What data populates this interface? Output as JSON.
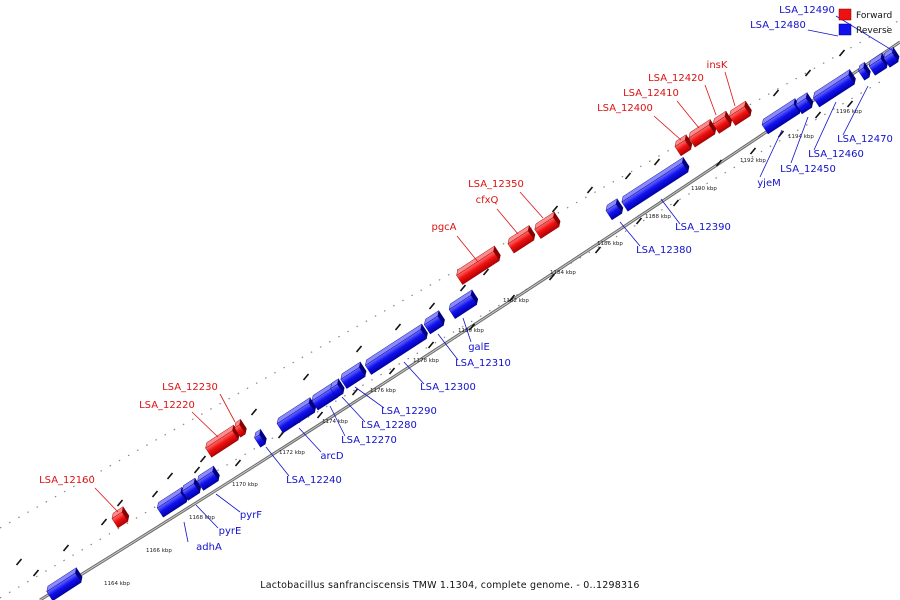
{
  "caption": "Lactobacillus sanfranciscensis TMW 1.1304, complete genome. - 0..1298316",
  "legend": [
    {
      "label": "Forward",
      "color": "#ee1111"
    },
    {
      "label": "Reverse",
      "color": "#1111ee"
    }
  ],
  "colors": {
    "forward": "#ee1111",
    "reverse": "#1111ee",
    "forward_label": "#dd1111",
    "reverse_label": "#1111cc",
    "backbone": "#777777"
  },
  "ticks": [
    "1164 kbp",
    "1166 kbp",
    "1168 kbp",
    "1170 kbp",
    "1172 kbp",
    "1174 kbp",
    "1176 kbp",
    "1178 kbp",
    "1180 kbp",
    "1182 kbp",
    "1184 kbp",
    "1186 kbp",
    "1188 kbp",
    "1190 kbp",
    "1192 kbp",
    "1194 kbp",
    "1196 kbp"
  ],
  "genes_forward": [
    "LSA_12160",
    "LSA_12220",
    "LSA_12230",
    "pgcA",
    "cfxQ",
    "LSA_12350",
    "LSA_12400",
    "LSA_12410",
    "LSA_12420",
    "insK"
  ],
  "genes_reverse": [
    "adhA",
    "pyrE",
    "pyrF",
    "LSA_12240",
    "arcD",
    "LSA_12270",
    "LSA_12280",
    "LSA_12290",
    "LSA_12300",
    "LSA_12310",
    "galE",
    "LSA_12380",
    "LSA_12390",
    "yjeM",
    "LSA_12450",
    "LSA_12460",
    "LSA_12470",
    "LSA_12480",
    "LSA_12490"
  ]
}
